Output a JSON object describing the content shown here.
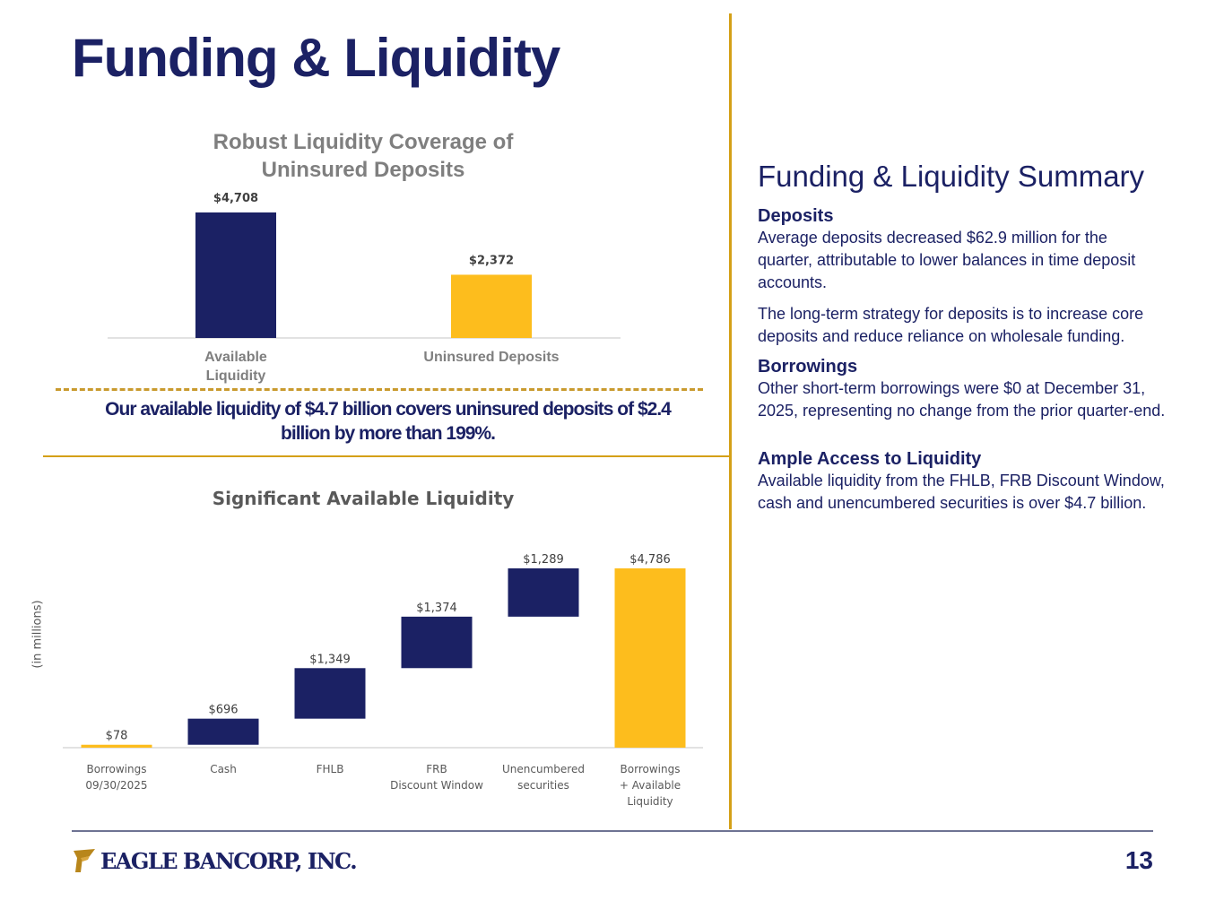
{
  "title": "Funding & Liquidity",
  "colors": {
    "navy": "#1b2164",
    "gold": "#fdbd1d",
    "rule": "#d4a017"
  },
  "callout": "Our available liquidity of $4.7 billion covers uninsured deposits of $2.4 billion by more than 199%.",
  "chart_data": [
    {
      "type": "bar",
      "title": "Robust Liquidity Coverage of Uninsured Deposits",
      "categories": [
        [
          "Available",
          "Liquidity"
        ],
        [
          "Uninsured Deposits"
        ]
      ],
      "values": [
        4708,
        2372
      ],
      "labels": [
        "$4,708",
        "$2,372"
      ],
      "colors": [
        "#1b2164",
        "#fdbd1d"
      ],
      "ylim": [
        0,
        4708
      ]
    },
    {
      "type": "waterfall",
      "title": "Significant Available Liquidity",
      "ylabel": "(in millions)",
      "categories": [
        [
          "Borrowings",
          "09/30/2025"
        ],
        [
          "Cash"
        ],
        [
          "FHLB"
        ],
        [
          "FRB",
          "Discount Window"
        ],
        [
          "Unencumbered",
          "securities"
        ],
        [
          "Borrowings",
          "+ Available",
          "Liquidity"
        ]
      ],
      "values": [
        78,
        696,
        1349,
        1374,
        1289,
        4786
      ],
      "labels": [
        "$78",
        "$696",
        "$1,349",
        "$1,374",
        "$1,289",
        "$4,786"
      ],
      "kinds": [
        "total",
        "delta",
        "delta",
        "delta",
        "delta",
        "total"
      ],
      "colors": [
        "#fdbd1d",
        "#1b2164",
        "#1b2164",
        "#1b2164",
        "#1b2164",
        "#fdbd1d"
      ],
      "ylim": [
        0,
        4786
      ]
    }
  ],
  "summary": {
    "heading": "Funding & Liquidity Summary",
    "deposits_heading": "Deposits",
    "deposits_p1": "Average deposits decreased $62.9 million for the quarter, attributable to lower balances in time deposit accounts.",
    "deposits_p2": "The long-term strategy for deposits is to increase core deposits and reduce reliance on wholesale funding.",
    "borrowings_heading": "Borrowings",
    "borrowings_p1": "Other short-term borrowings were $0 at December 31, 2025, representing no change from the prior quarter-end.",
    "access_heading": "Ample Access to Liquidity",
    "access_p1": "Available liquidity from the FHLB, FRB Discount Window, cash and unencumbered securities is over $4.7 billion."
  },
  "footer": {
    "logo_text": "EAGLE BANCORP, INC.",
    "page_number": "13"
  }
}
